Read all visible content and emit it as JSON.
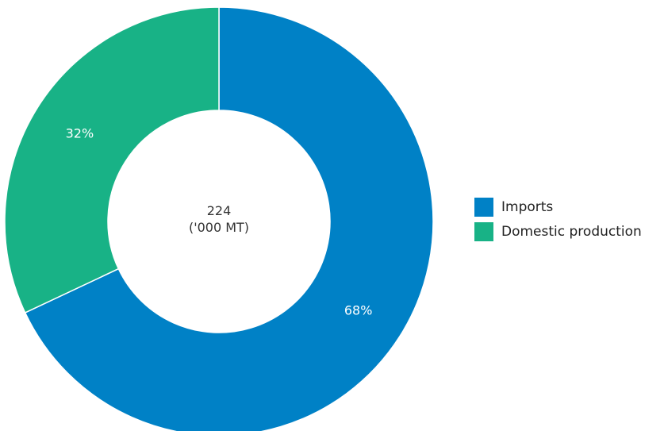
{
  "chart_data": {
    "type": "pie",
    "center_label": {
      "value": "224",
      "unit": "('000 MT)"
    },
    "slices": [
      {
        "name": "Imports",
        "value": 68,
        "label": "68%",
        "color": "#0081c6"
      },
      {
        "name": "Domestic production",
        "value": 32,
        "label": "32%",
        "color": "#18b286"
      }
    ],
    "legend_position": "right"
  }
}
